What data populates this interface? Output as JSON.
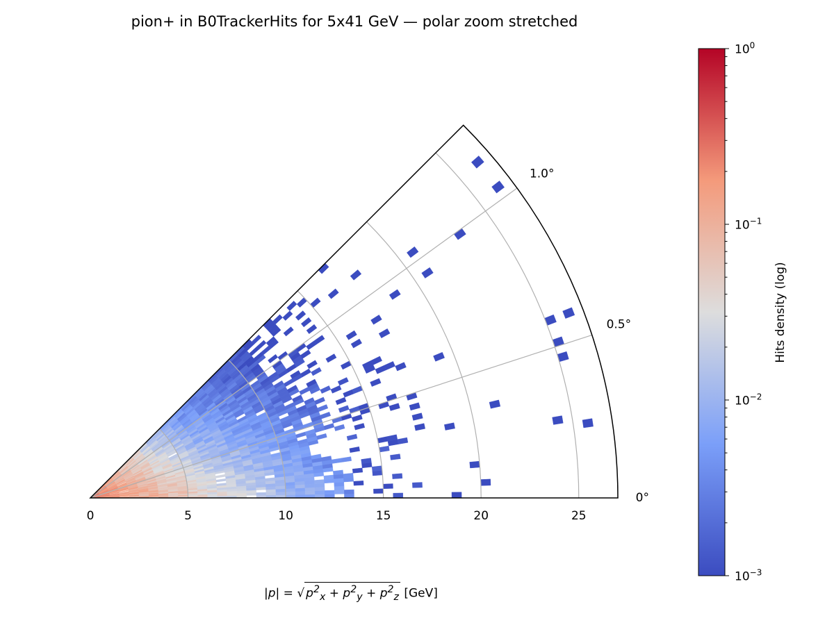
{
  "title": "pion+ in B0TrackerHits for 5x41 GeV — polar zoom stretched",
  "chart_data": {
    "type": "heatmap",
    "projection": "polar",
    "title": "pion+ in B0TrackerHits for 5x41 GeV — polar zoom stretched",
    "xlabel": "|p| = sqrt(px^2 + py^2 + pz^2) [GeV]",
    "xlabel_parts": {
      "lhs": "|p| = ",
      "px": "p",
      "py": "p",
      "pz": "p",
      "sx": "x",
      "sy": "y",
      "sz": "z",
      "unit": "[GeV]"
    },
    "r_range": [
      0,
      27
    ],
    "r_ticks": [
      0,
      5,
      10,
      15,
      20,
      25
    ],
    "r_tick_labels": [
      "0",
      "5",
      "10",
      "15",
      "20",
      "25"
    ],
    "theta_range_deg": [
      0,
      1.25
    ],
    "theta_ticks_deg": [
      0,
      0.5,
      1.0
    ],
    "theta_tick_labels": [
      "0°",
      "0.5°",
      "1.0°"
    ],
    "theta_stretch_factor": 36,
    "r_bin_width_gev": 0.5,
    "theta_bin_width_deg": 0.025,
    "density_model": {
      "log10_at_origin": -0.6,
      "log10_slope_per_gev": -0.135,
      "log10_slope_per_deg": -0.8,
      "fill_falloff_gev": 11
    },
    "colorbar": {
      "label": "Hits density (log)",
      "scale": "log",
      "range": [
        0.001,
        1
      ],
      "cmap": "coolwarm",
      "ticks": [
        {
          "value": 1,
          "base": "10",
          "exp": "0"
        },
        {
          "value": 0.1,
          "base": "10",
          "exp": "−1"
        },
        {
          "value": 0.01,
          "base": "10",
          "exp": "−2"
        },
        {
          "value": 0.001,
          "base": "10",
          "exp": "−3"
        }
      ]
    },
    "grid": true
  },
  "colors": {
    "grid": "#b0b0b0",
    "cmap": [
      "#3b4cc0",
      "#7b9ff9",
      "#dddddd",
      "#f49a7b",
      "#b40426"
    ]
  }
}
